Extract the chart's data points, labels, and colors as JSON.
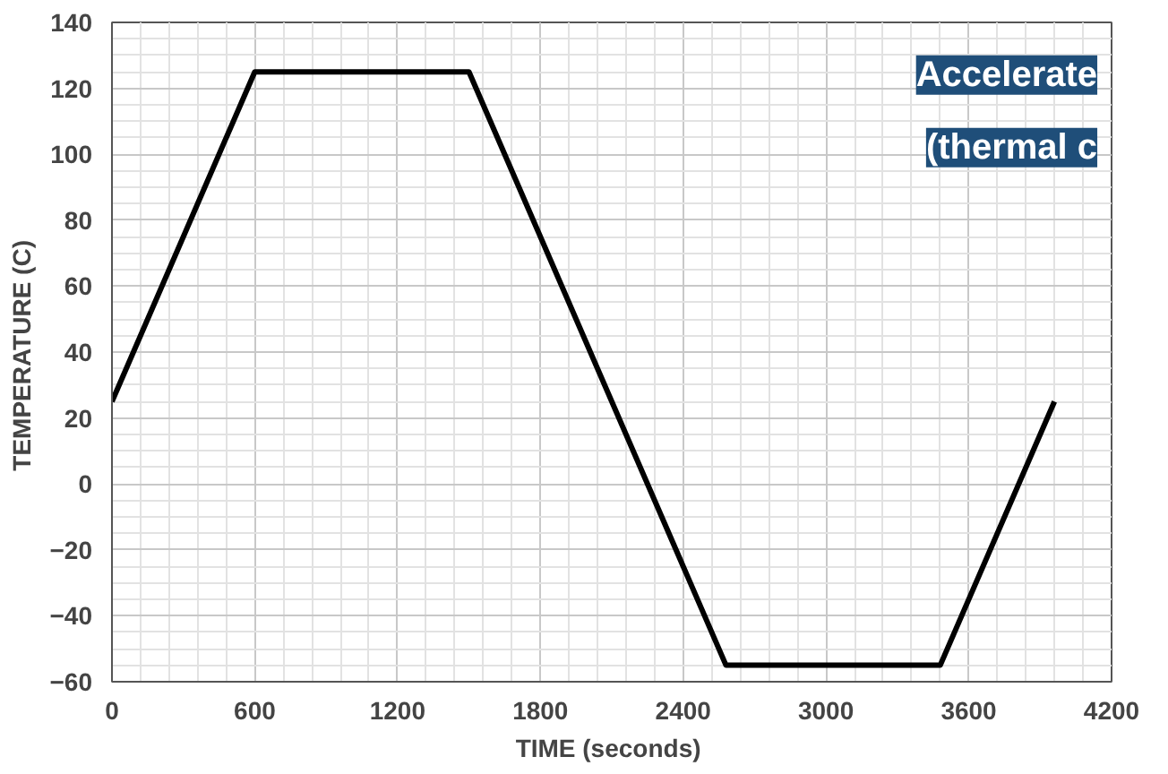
{
  "chart_data": {
    "type": "line",
    "xlabel": "TIME  (seconds)",
    "ylabel": "TEMPERATURE  (C)",
    "x": [
      0,
      600,
      1500,
      2580,
      3480,
      3960
    ],
    "series": [
      {
        "color": "#000000",
        "values": [
          25,
          125,
          125,
          -55,
          -55,
          25
        ]
      }
    ],
    "xlim": [
      0,
      4200
    ],
    "ylim": [
      -60,
      140
    ],
    "xticks": [
      0,
      600,
      1200,
      1800,
      2400,
      3000,
      3600,
      4200
    ],
    "yticks": [
      -60,
      -40,
      -20,
      0,
      20,
      40,
      60,
      80,
      100,
      120,
      140
    ],
    "grid": true,
    "marker": "none",
    "line_style": "solid",
    "annotations": [
      "Accelerate",
      "(thermal c"
    ]
  }
}
